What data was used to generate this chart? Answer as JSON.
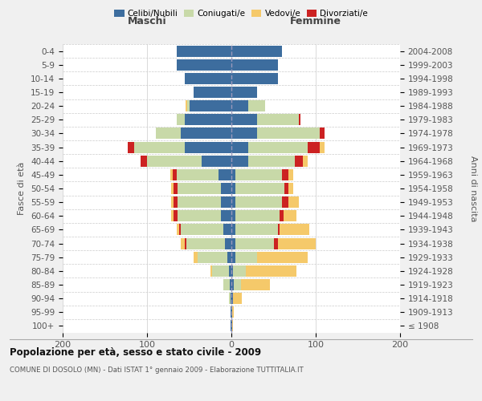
{
  "age_groups": [
    "100+",
    "95-99",
    "90-94",
    "85-89",
    "80-84",
    "75-79",
    "70-74",
    "65-69",
    "60-64",
    "55-59",
    "50-54",
    "45-49",
    "40-44",
    "35-39",
    "30-34",
    "25-29",
    "20-24",
    "15-19",
    "10-14",
    "5-9",
    "0-4"
  ],
  "birth_years": [
    "≤ 1908",
    "1909-1913",
    "1914-1918",
    "1919-1923",
    "1924-1928",
    "1929-1933",
    "1934-1938",
    "1939-1943",
    "1944-1948",
    "1949-1953",
    "1954-1958",
    "1959-1963",
    "1964-1968",
    "1969-1973",
    "1974-1978",
    "1979-1983",
    "1984-1988",
    "1989-1993",
    "1994-1998",
    "1999-2003",
    "2004-2008"
  ],
  "males": {
    "celibi": [
      1,
      1,
      1,
      2,
      3,
      5,
      8,
      10,
      12,
      12,
      12,
      15,
      35,
      55,
      60,
      55,
      50,
      45,
      55,
      65,
      65
    ],
    "coniugati": [
      0,
      0,
      2,
      8,
      20,
      35,
      45,
      50,
      52,
      52,
      52,
      50,
      65,
      60,
      30,
      10,
      2,
      0,
      0,
      0,
      0
    ],
    "vedovi": [
      0,
      0,
      0,
      0,
      2,
      5,
      5,
      3,
      2,
      2,
      2,
      2,
      0,
      0,
      0,
      0,
      2,
      0,
      0,
      0,
      0
    ],
    "divorziati": [
      0,
      0,
      0,
      0,
      0,
      0,
      2,
      2,
      5,
      5,
      5,
      5,
      8,
      8,
      0,
      0,
      0,
      0,
      0,
      0,
      0
    ]
  },
  "females": {
    "nubili": [
      1,
      1,
      2,
      3,
      2,
      5,
      5,
      5,
      5,
      5,
      5,
      5,
      20,
      20,
      30,
      30,
      20,
      30,
      55,
      55,
      60
    ],
    "coniugate": [
      0,
      0,
      0,
      8,
      15,
      25,
      45,
      50,
      52,
      55,
      58,
      55,
      55,
      70,
      75,
      50,
      20,
      0,
      0,
      0,
      0
    ],
    "vedove": [
      1,
      2,
      10,
      35,
      60,
      60,
      45,
      35,
      15,
      12,
      5,
      5,
      5,
      5,
      0,
      0,
      0,
      0,
      0,
      0,
      0
    ],
    "divorziate": [
      0,
      0,
      0,
      0,
      0,
      0,
      5,
      2,
      5,
      8,
      5,
      8,
      10,
      15,
      5,
      2,
      0,
      0,
      0,
      0,
      0
    ]
  },
  "colors": {
    "celibi": "#3d6d9e",
    "coniugati": "#c8d9a8",
    "vedovi": "#f5c96a",
    "divorziati": "#cc2222"
  },
  "xlim": [
    -200,
    200
  ],
  "xticks": [
    -200,
    -100,
    0,
    100,
    200
  ],
  "xticklabels": [
    "200",
    "100",
    "0",
    "100",
    "200"
  ],
  "title": "Popolazione per età, sesso e stato civile - 2009",
  "subtitle": "COMUNE DI DOSOLO (MN) - Dati ISTAT 1° gennaio 2009 - Elaborazione TUTTITALIA.IT",
  "ylabel_left": "Fasce di età",
  "ylabel_right": "Anni di nascita",
  "label_maschi": "Maschi",
  "label_femmine": "Femmine",
  "legend_labels": [
    "Celibi/Nubili",
    "Coniugati/e",
    "Vedovi/e",
    "Divorziati/e"
  ],
  "bg_color": "#f0f0f0",
  "plot_bg_color": "#ffffff"
}
